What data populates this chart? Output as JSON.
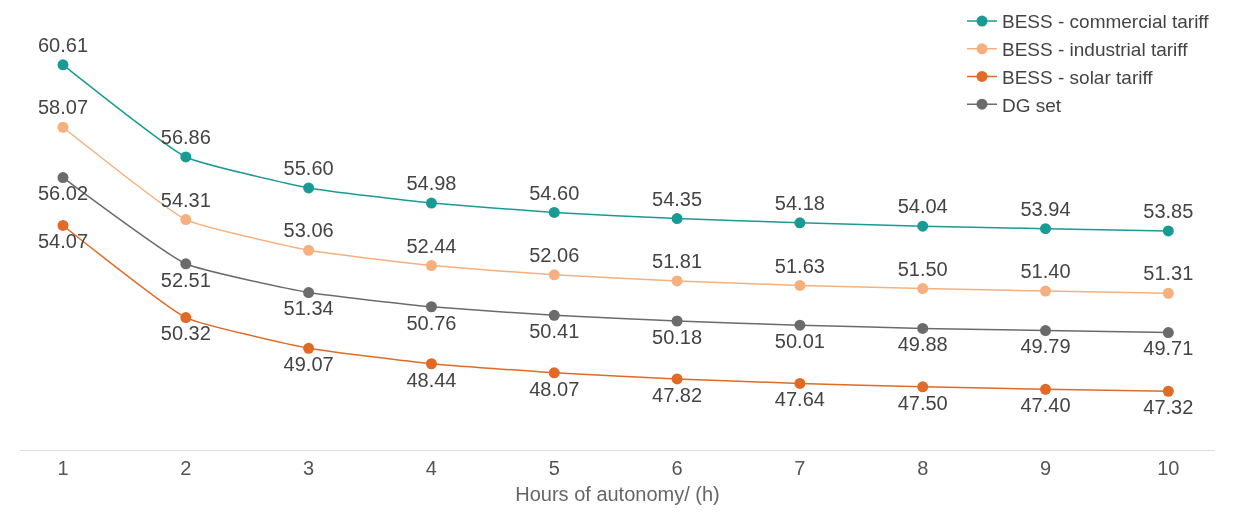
{
  "chart_data": {
    "type": "line",
    "xlabel": "Hours of autonomy/ (h)",
    "categories": [
      "1",
      "2",
      "3",
      "4",
      "5",
      "6",
      "7",
      "8",
      "9",
      "10"
    ],
    "series": [
      {
        "name": "BESS - commercial tariff",
        "color": "#1a9a94",
        "values": [
          60.61,
          56.86,
          55.6,
          54.98,
          54.6,
          54.35,
          54.18,
          54.04,
          53.94,
          53.85
        ],
        "value_labels": [
          "60.61",
          "56.86",
          "55.60",
          "54.98",
          "54.60",
          "54.35",
          "54.18",
          "54.04",
          "53.94",
          "53.85"
        ]
      },
      {
        "name": "BESS - industrial tariff",
        "color": "#f6b07e",
        "values": [
          58.07,
          54.31,
          53.06,
          52.44,
          52.06,
          51.81,
          51.63,
          51.5,
          51.4,
          51.31
        ],
        "value_labels": [
          "58.07",
          "54.31",
          "53.06",
          "52.44",
          "52.06",
          "51.81",
          "51.63",
          "51.50",
          "51.40",
          "51.31"
        ]
      },
      {
        "name": "BESS - solar tariff",
        "color": "#e06a26",
        "values": [
          54.07,
          50.32,
          49.07,
          48.44,
          48.07,
          47.82,
          47.64,
          47.5,
          47.4,
          47.32
        ],
        "value_labels": [
          "54.07",
          "50.32",
          "49.07",
          "48.44",
          "48.07",
          "47.82",
          "47.64",
          "47.50",
          "47.40",
          "47.32"
        ]
      },
      {
        "name": "DG set",
        "color": "#6b6b6b",
        "values": [
          56.02,
          52.51,
          51.34,
          50.76,
          50.41,
          50.18,
          50.01,
          49.88,
          49.79,
          49.71
        ],
        "value_labels": [
          "56.02",
          "52.51",
          "51.34",
          "50.76",
          "50.41",
          "50.18",
          "50.01",
          "49.88",
          "49.79",
          "49.71"
        ]
      }
    ],
    "marker": "circle",
    "line_style": "solid",
    "legend": "top right"
  }
}
